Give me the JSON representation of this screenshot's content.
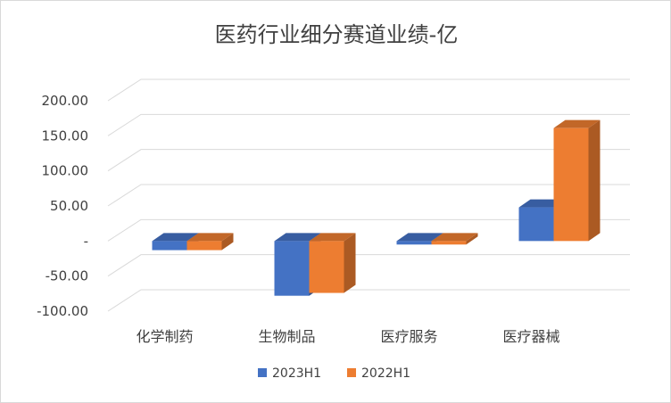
{
  "chart_data": {
    "type": "bar",
    "style": "3d-clustered-column",
    "title": "医药行业细分赛道业绩-亿",
    "categories": [
      "化学制药",
      "生物制品",
      "医疗服务",
      "医疗器械"
    ],
    "series": [
      {
        "name": "2023H1",
        "values": [
          -13,
          -78,
          -5,
          48
        ],
        "color": "#4472C4"
      },
      {
        "name": "2022H1",
        "values": [
          -13,
          -74,
          -5,
          161
        ],
        "color": "#ED7D31"
      }
    ],
    "ylim": [
      -100,
      200
    ],
    "yticks": [
      -100,
      -50,
      0,
      50,
      100,
      150,
      200
    ],
    "ytick_labels": [
      "-100.00",
      "-50.00",
      "-",
      "50.00",
      "100.00",
      "150.00",
      "200.00"
    ],
    "grid": true,
    "legend_position": "bottom"
  }
}
